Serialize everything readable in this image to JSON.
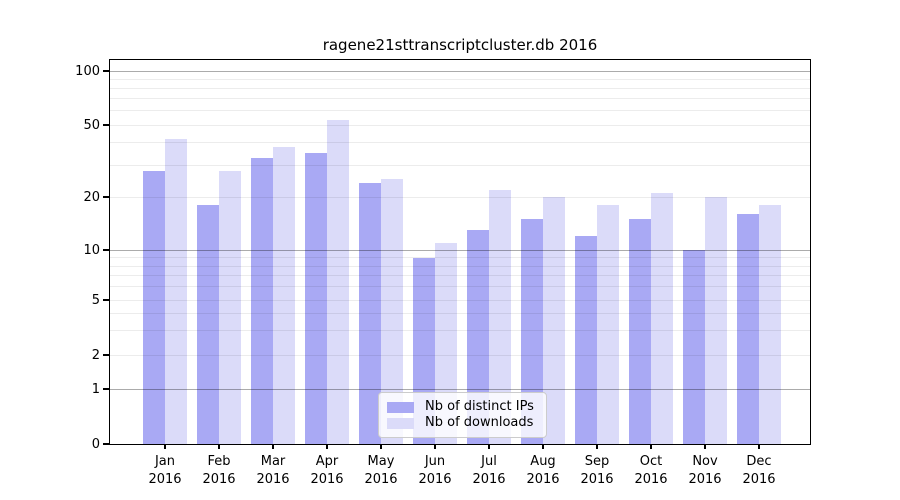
{
  "window": {
    "background": "#ffffff"
  },
  "chart_data": {
    "type": "bar",
    "title": "ragene21sttranscriptcluster.db 2016",
    "categories": [
      "Jan 2016",
      "Feb 2016",
      "Mar 2016",
      "Apr 2016",
      "May 2016",
      "Jun 2016",
      "Jul 2016",
      "Aug 2016",
      "Sep 2016",
      "Oct 2016",
      "Nov 2016",
      "Dec 2016"
    ],
    "series": [
      {
        "name": "Nb of distinct IPs",
        "color": "#a9a9f4",
        "values": [
          28,
          18,
          33,
          35,
          24,
          9,
          13,
          15,
          12,
          15,
          10,
          16
        ]
      },
      {
        "name": "Nb of downloads",
        "color": "#dbdbf9",
        "values": [
          42,
          28,
          38,
          53,
          25,
          11,
          22,
          20,
          18,
          21,
          20,
          18
        ]
      }
    ],
    "xlabel": "",
    "ylabel": "",
    "yscale": "log-like (0,1,2,5,10,20,50,100)",
    "ylim": [
      0,
      130
    ],
    "yticks": [
      0,
      1,
      2,
      5,
      10,
      20,
      50,
      100
    ],
    "ytick_labels": [
      "0",
      "1",
      "2",
      "5",
      "10",
      "20",
      "50",
      "100"
    ],
    "major_gridlines": [
      1,
      10,
      100
    ],
    "minor_gridlines": [
      2,
      3,
      4,
      5,
      6,
      7,
      8,
      9,
      20,
      30,
      40,
      50,
      60,
      70,
      80,
      90
    ],
    "grid": true,
    "legend_position": "lower center",
    "colors": {
      "distinct_ips_bar": "#a9a9f4",
      "downloads_bar": "#dbdbf9",
      "major_grid": "rgba(0,0,0,0.33)",
      "minor_grid": "rgba(0,0,0,0.075)",
      "axis": "#000000",
      "legend_border": "#cccccc",
      "legend_background": "rgba(255,255,255,0.8)"
    }
  }
}
